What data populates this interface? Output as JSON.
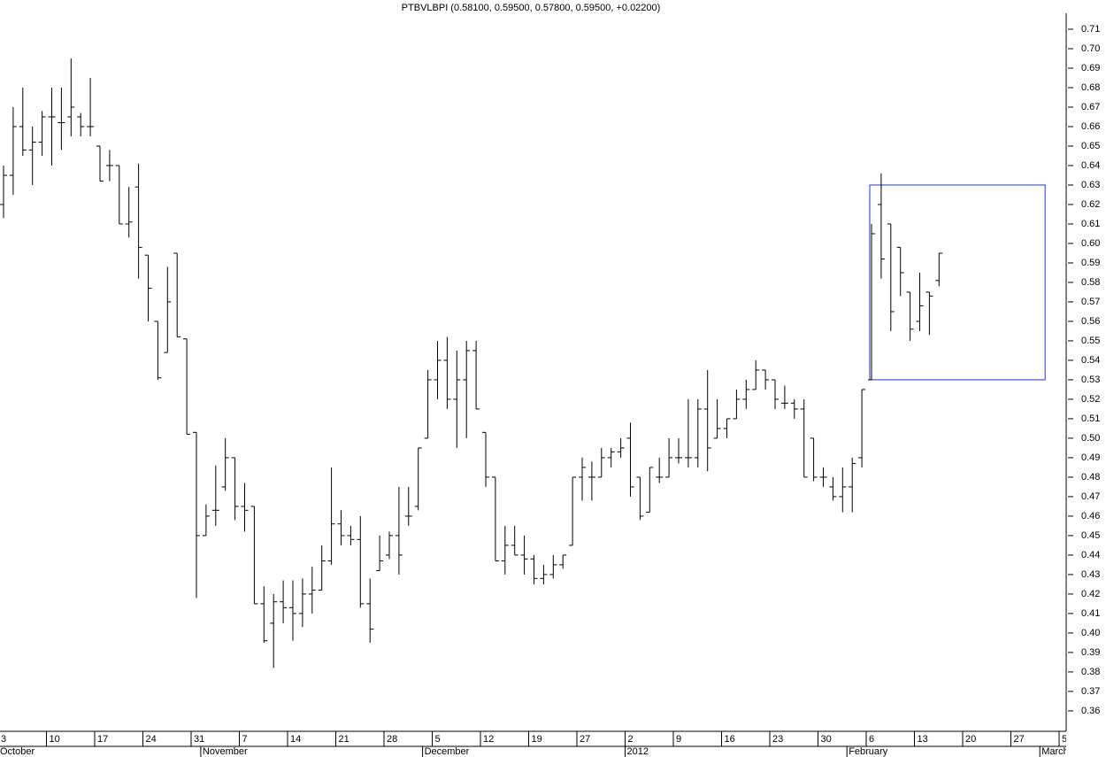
{
  "chart_data": {
    "type": "ohlc",
    "title": "PTBVLBPI (0.58100, 0.59500, 0.57800, 0.59500, +0.02200)",
    "categories": [
      "3",
      null,
      null,
      null,
      null,
      "10",
      null,
      null,
      null,
      null,
      "17",
      null,
      null,
      null,
      null,
      "24",
      null,
      null,
      null,
      null,
      "31",
      null,
      null,
      null,
      null,
      "7",
      null,
      null,
      null,
      null,
      "14",
      null,
      null,
      null,
      null,
      "21",
      null,
      null,
      null,
      null,
      "28",
      null,
      null,
      null,
      null,
      "5",
      null,
      null,
      null,
      null,
      "12",
      null,
      null,
      null,
      null,
      "19",
      null,
      null,
      null,
      null,
      "27",
      null,
      null,
      null,
      null,
      "2",
      null,
      null,
      null,
      null,
      "9",
      null,
      null,
      null,
      null,
      "16",
      null,
      null,
      null,
      null,
      "23",
      null,
      null,
      null,
      null,
      "30",
      null,
      null,
      null,
      null,
      "6",
      null,
      null,
      null,
      null,
      "13",
      null,
      null,
      null,
      null,
      "20",
      null,
      null,
      null,
      null,
      "27",
      null,
      null,
      null,
      null,
      "5"
    ],
    "months": [
      {
        "label": "October",
        "start": 0
      },
      {
        "label": "November",
        "start": 21
      },
      {
        "label": "December",
        "start": 44
      },
      {
        "label": "2012",
        "start": 65
      },
      {
        "label": "February",
        "start": 88
      },
      {
        "label": "March",
        "start": 108
      }
    ],
    "open": [
      0.62,
      0.635,
      0.66,
      0.648,
      0.652,
      0.665,
      0.662,
      0.665,
      0.665,
      0.66,
      0.65,
      0.64,
      0.64,
      0.61,
      0.629,
      0.594,
      0.56,
      0.544,
      0.595,
      0.551,
      0.503,
      0.45,
      0.463,
      0.475,
      0.49,
      0.465,
      0.465,
      0.415,
      0.405,
      0.416,
      0.413,
      0.41,
      0.42,
      0.422,
      0.437,
      0.456,
      0.45,
      0.448,
      0.415,
      0.432,
      0.44,
      0.45,
      0.46,
      0.465,
      0.5,
      0.53,
      0.54,
      0.52,
      0.53,
      0.545,
      0.503,
      0.48,
      0.437,
      0.445,
      0.44,
      0.438,
      0.428,
      0.43,
      0.435,
      0.445,
      0.48,
      0.48,
      0.48,
      0.49,
      0.493,
      0.5,
      0.48,
      0.462,
      0.48,
      0.48,
      0.49,
      0.49,
      0.49,
      0.515,
      0.5,
      0.505,
      0.51,
      0.52,
      0.525,
      0.535,
      0.53,
      0.518,
      0.518,
      0.515,
      0.5,
      0.48,
      0.475,
      0.47,
      0.475,
      0.49,
      0.53,
      0.62,
      0.61,
      0.598,
      0.575,
      0.56,
      0.575,
      0.581,
      null,
      null,
      null,
      null,
      null,
      null,
      null,
      null,
      null,
      null,
      null,
      null,
      null
    ],
    "high": [
      0.64,
      0.67,
      0.68,
      0.66,
      0.668,
      0.68,
      0.68,
      0.695,
      0.667,
      0.685,
      0.65,
      0.648,
      0.64,
      0.629,
      0.641,
      0.594,
      0.56,
      0.588,
      0.595,
      0.551,
      0.503,
      0.466,
      0.486,
      0.5,
      0.49,
      0.477,
      0.465,
      0.424,
      0.42,
      0.427,
      0.427,
      0.428,
      0.434,
      0.445,
      0.485,
      0.463,
      0.455,
      0.46,
      0.428,
      0.45,
      0.452,
      0.475,
      0.475,
      0.495,
      0.535,
      0.55,
      0.552,
      0.545,
      0.55,
      0.55,
      0.503,
      0.48,
      0.455,
      0.455,
      0.45,
      0.44,
      0.435,
      0.44,
      0.44,
      0.48,
      0.49,
      0.488,
      0.495,
      0.495,
      0.5,
      0.508,
      0.48,
      0.485,
      0.49,
      0.5,
      0.5,
      0.52,
      0.52,
      0.535,
      0.52,
      0.51,
      0.525,
      0.53,
      0.54,
      0.535,
      0.53,
      0.527,
      0.52,
      0.52,
      0.5,
      0.485,
      0.48,
      0.485,
      0.49,
      0.525,
      0.61,
      0.636,
      0.61,
      0.598,
      0.575,
      0.585,
      0.575,
      0.595,
      null,
      null,
      null,
      null,
      null,
      null,
      null,
      null,
      null,
      null,
      null,
      null,
      null
    ],
    "low": [
      0.613,
      0.625,
      0.645,
      0.63,
      0.645,
      0.64,
      0.648,
      0.655,
      0.655,
      0.655,
      0.632,
      0.632,
      0.61,
      0.603,
      0.582,
      0.56,
      0.53,
      0.544,
      0.552,
      0.502,
      0.418,
      0.45,
      0.455,
      0.473,
      0.458,
      0.452,
      0.415,
      0.395,
      0.382,
      0.405,
      0.396,
      0.403,
      0.41,
      0.422,
      0.435,
      0.445,
      0.445,
      0.413,
      0.395,
      0.432,
      0.438,
      0.43,
      0.455,
      0.463,
      0.5,
      0.52,
      0.515,
      0.495,
      0.5,
      0.515,
      0.475,
      0.437,
      0.43,
      0.44,
      0.43,
      0.425,
      0.425,
      0.428,
      0.433,
      0.445,
      0.468,
      0.468,
      0.48,
      0.485,
      0.49,
      0.47,
      0.458,
      0.462,
      0.477,
      0.48,
      0.487,
      0.485,
      0.485,
      0.483,
      0.5,
      0.5,
      0.51,
      0.515,
      0.525,
      0.525,
      0.515,
      0.515,
      0.51,
      0.48,
      0.478,
      0.475,
      0.468,
      0.462,
      0.462,
      0.485,
      0.53,
      0.582,
      0.555,
      0.573,
      0.55,
      0.555,
      0.553,
      0.578,
      null,
      null,
      null,
      null,
      null,
      null,
      null,
      null,
      null,
      null,
      null,
      null,
      null
    ],
    "close": [
      0.635,
      0.66,
      0.648,
      0.652,
      0.665,
      0.665,
      0.662,
      0.67,
      0.66,
      0.66,
      0.632,
      0.64,
      0.61,
      0.611,
      0.598,
      0.577,
      0.531,
      0.57,
      0.552,
      0.502,
      0.45,
      0.46,
      0.463,
      0.49,
      0.465,
      0.463,
      0.415,
      0.396,
      0.416,
      0.413,
      0.41,
      0.42,
      0.422,
      0.437,
      0.456,
      0.45,
      0.448,
      0.415,
      0.402,
      0.437,
      0.45,
      0.44,
      0.46,
      0.495,
      0.53,
      0.54,
      0.52,
      0.53,
      0.545,
      0.515,
      0.48,
      0.437,
      0.445,
      0.44,
      0.438,
      0.428,
      0.43,
      0.435,
      0.44,
      0.48,
      0.485,
      0.48,
      0.49,
      0.493,
      0.495,
      0.475,
      0.46,
      0.485,
      0.48,
      0.49,
      0.49,
      0.49,
      0.515,
      0.495,
      0.505,
      0.51,
      0.52,
      0.525,
      0.535,
      0.53,
      0.52,
      0.518,
      0.515,
      0.48,
      0.48,
      0.48,
      0.47,
      0.475,
      0.487,
      0.525,
      0.605,
      0.592,
      0.565,
      0.585,
      0.556,
      0.568,
      0.573,
      0.595,
      null,
      null,
      null,
      null,
      null,
      null,
      null,
      null,
      null,
      null,
      null,
      null,
      null
    ],
    "color": "#000000",
    "highlight_box": {
      "x": [
        90,
        108
      ],
      "y": [
        0.53,
        0.63
      ],
      "color": "#2233cc"
    },
    "ylim": [
      0.3495,
      0.725
    ],
    "yticks": [
      0.36,
      0.37,
      0.38,
      0.39,
      {
        "value": 0.4,
        "label": "0.40"
      },
      0.41,
      0.42,
      0.43,
      0.44,
      0.45,
      0.46,
      0.47,
      0.48,
      0.49,
      {
        "value": 0.5,
        "label": "0.50"
      },
      0.51,
      0.52,
      0.53,
      0.54,
      0.55,
      0.56,
      0.57,
      0.58,
      0.59,
      {
        "value": 0.6,
        "label": "0.60"
      },
      0.61,
      0.62,
      0.63,
      0.64,
      0.65,
      0.66,
      0.67,
      0.68,
      0.69,
      {
        "value": 0.7,
        "label": "0.70"
      },
      0.71
    ]
  }
}
